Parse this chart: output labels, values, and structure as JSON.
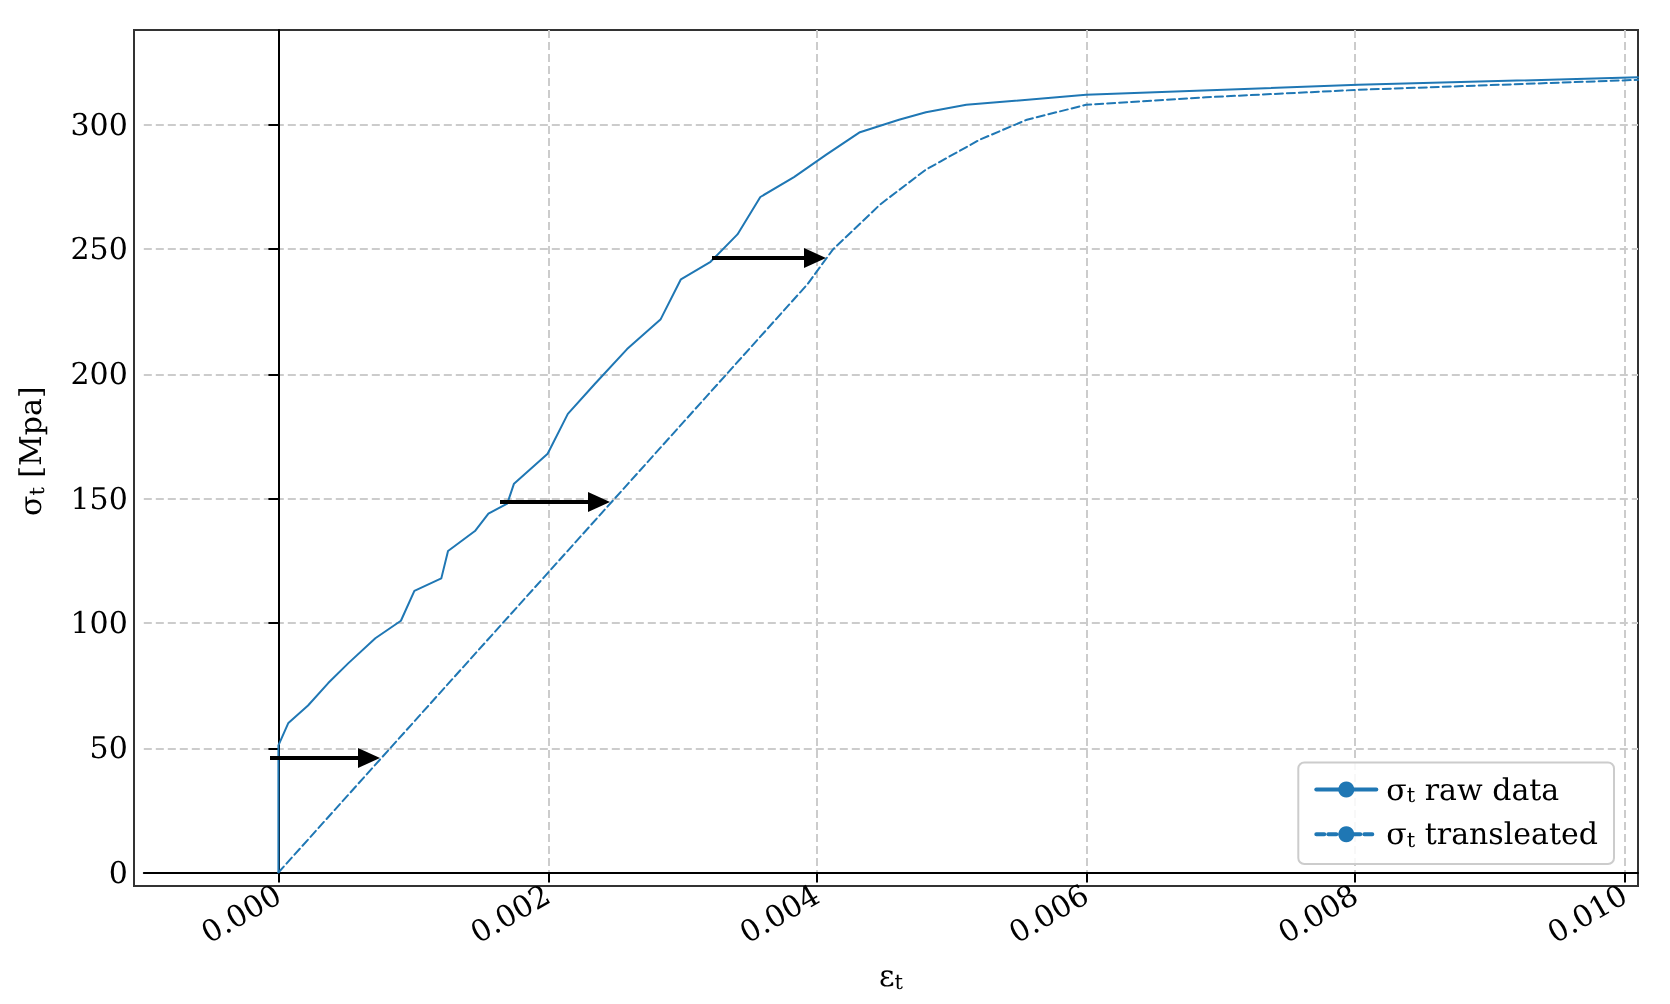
{
  "chart_data": {
    "type": "line",
    "xlabel": "ε$_{t}$",
    "ylabel": "σ$_{t}$ [Mpa]",
    "xlim": [
      -0.001,
      0.0101
    ],
    "ylim": [
      0,
      338
    ],
    "xticks": [
      {
        "value": 0,
        "label": "0.000"
      },
      {
        "value": 0.002,
        "label": "0.002"
      },
      {
        "value": 0.004,
        "label": "0.004"
      },
      {
        "value": 0.006,
        "label": "0.006"
      },
      {
        "value": 0.008,
        "label": "0.008"
      },
      {
        "value": 0.01,
        "label": "0.010"
      }
    ],
    "yticks": [
      0,
      50,
      100,
      150,
      200,
      250,
      300
    ],
    "grid": true,
    "legend": "bottom right",
    "marker": "none",
    "series": [
      {
        "name": "σ$_{t}$ raw data",
        "color": "#1f77b4",
        "line_style": "solid",
        "x": [
          0,
          0,
          7.4e-05,
          0.00022,
          0.00037,
          0.00052,
          0.00072,
          0.00091,
          0.00101,
          0.00121,
          0.00126,
          0.00146,
          0.00156,
          0.0017,
          0.00175,
          0.002,
          0.00215,
          0.00235,
          0.00259,
          0.00284,
          0.00299,
          0.00321,
          0.00341,
          0.00358,
          0.00383,
          0.00407,
          0.00432,
          0.00461,
          0.00481,
          0.00511,
          0.006,
          0.00802,
          0.0101
        ],
        "values": [
          0,
          51,
          60,
          67,
          76,
          84,
          94,
          101,
          113,
          118,
          129,
          137,
          144,
          148,
          156,
          168,
          184,
          196,
          210,
          222,
          238,
          245,
          256,
          271,
          279,
          288,
          297,
          302,
          305,
          308,
          312,
          316,
          319
        ]
      },
      {
        "name": "σ$_{t}$ transleated",
        "color": "#1f77b4",
        "line_style": "dashed",
        "x": [
          0,
          0.00393,
          0.00412,
          0.00447,
          0.00481,
          0.00521,
          0.00556,
          0.006,
          0.00689,
          0.00802,
          0.0101
        ],
        "values": [
          0,
          236,
          250,
          268,
          282,
          294,
          302,
          308,
          311,
          314,
          318
        ]
      }
    ]
  }
}
